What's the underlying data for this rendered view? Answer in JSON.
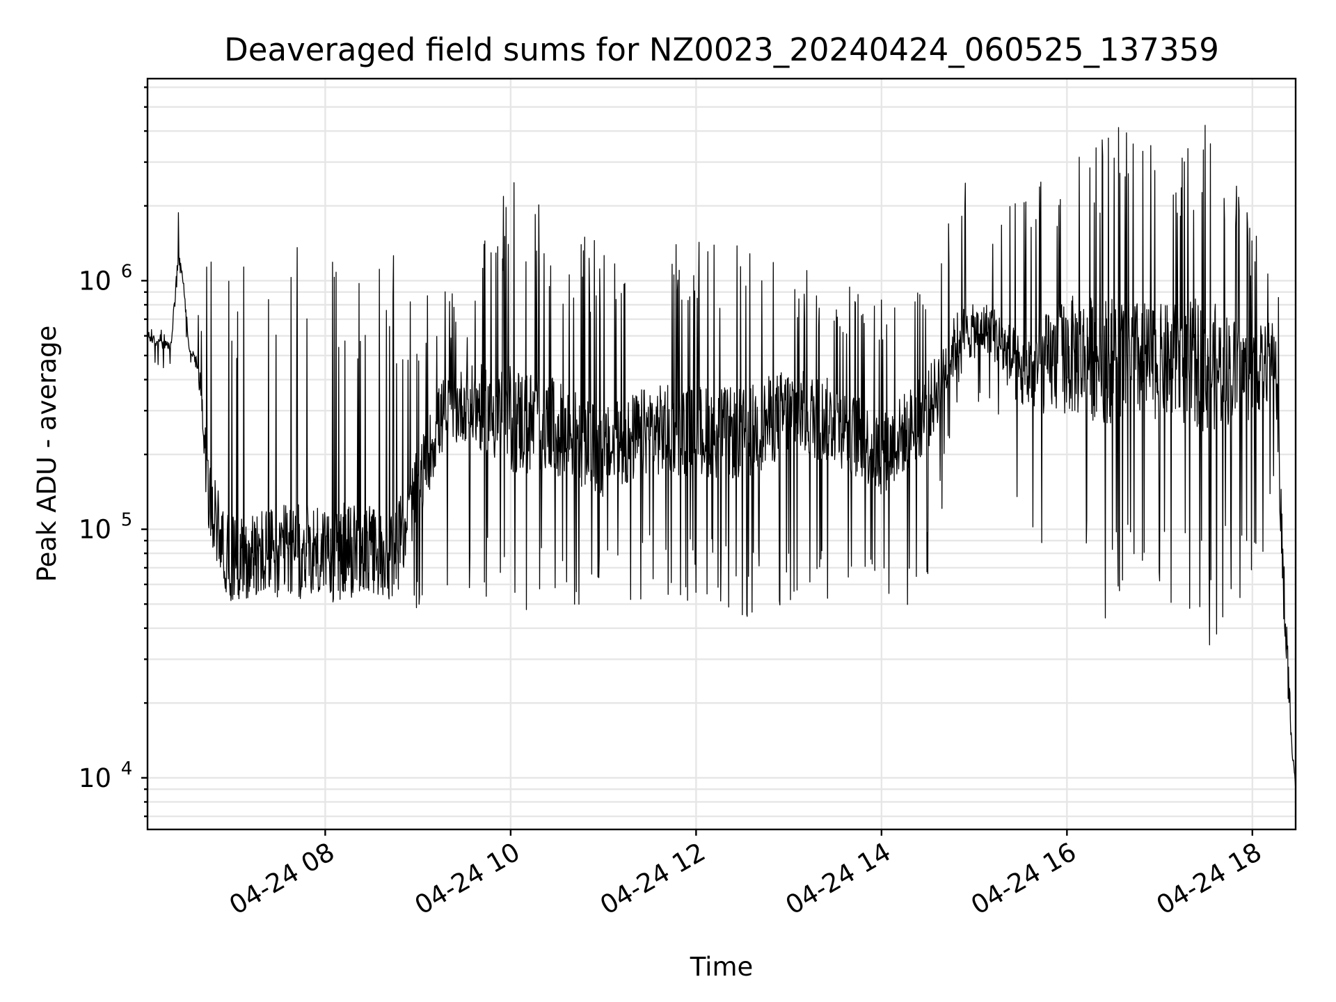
{
  "chart_data": {
    "type": "line",
    "title": "Deaveraged field sums for NZ0023_20240424_060525_137359",
    "xlabel": "Time",
    "ylabel": "Peak ADU - average",
    "x_ticks": [
      {
        "value": "2024-04-24T08:00",
        "label": "04-24 08"
      },
      {
        "value": "2024-04-24T10:00",
        "label": "04-24 10"
      },
      {
        "value": "2024-04-24T12:00",
        "label": "04-24 12"
      },
      {
        "value": "2024-04-24T14:00",
        "label": "04-24 14"
      },
      {
        "value": "2024-04-24T16:00",
        "label": "04-24 16"
      },
      {
        "value": "2024-04-24T18:00",
        "label": "04-24 18"
      }
    ],
    "y_ticks": [
      {
        "value": 10000,
        "base": "10",
        "exp": "4"
      },
      {
        "value": 100000,
        "base": "10",
        "exp": "5"
      },
      {
        "value": 1000000,
        "base": "10",
        "exp": "6"
      }
    ],
    "xlim": [
      "2024-04-24T06:05",
      "2024-04-24T18:28"
    ],
    "ylim": [
      6200,
      6500000
    ],
    "yscale": "log",
    "grid": true,
    "line_color": "#000000",
    "series": [
      {
        "x": [
          "2024-04-24T06:05",
          "2024-04-24T06:12",
          "2024-04-24T06:20",
          "2024-04-24T06:25",
          "2024-04-24T06:28",
          "2024-04-24T06:32",
          "2024-04-24T06:35",
          "2024-04-24T06:38",
          "2024-04-24T06:45",
          "2024-04-24T06:55",
          "2024-04-24T07:00",
          "2024-04-24T07:10",
          "2024-04-24T07:30",
          "2024-04-24T08:00",
          "2024-04-24T08:30",
          "2024-04-24T08:45",
          "2024-04-24T09:00",
          "2024-04-24T09:15",
          "2024-04-24T09:30",
          "2024-04-24T09:45",
          "2024-04-24T10:00",
          "2024-04-24T10:20",
          "2024-04-24T10:40",
          "2024-04-24T11:00",
          "2024-04-24T11:30",
          "2024-04-24T12:00",
          "2024-04-24T12:30",
          "2024-04-24T13:00",
          "2024-04-24T13:30",
          "2024-04-24T14:00",
          "2024-04-24T14:30",
          "2024-04-24T14:50",
          "2024-04-24T15:10",
          "2024-04-24T15:30",
          "2024-04-24T16:00",
          "2024-04-24T16:30",
          "2024-04-24T17:00",
          "2024-04-24T17:30",
          "2024-04-24T18:00",
          "2024-04-24T18:15",
          "2024-04-24T18:20",
          "2024-04-24T18:25",
          "2024-04-24T18:28"
        ],
        "values": [
          600000,
          560000,
          540000,
          1200000,
          1000000,
          520000,
          500000,
          450000,
          130000,
          85000,
          75000,
          80000,
          82000,
          85000,
          82000,
          78000,
          150000,
          280000,
          320000,
          300000,
          280000,
          260000,
          240000,
          200000,
          250000,
          250000,
          240000,
          300000,
          270000,
          200000,
          300000,
          600000,
          650000,
          420000,
          500000,
          480000,
          470000,
          460000,
          420000,
          500000,
          60000,
          16000,
          9000
        ],
        "high": [
          680000,
          640000,
          620000,
          2000000,
          1050000,
          560000,
          520000,
          800000,
          1300000,
          1500000,
          1500000,
          1500000,
          1500000,
          1500000,
          1500000,
          1500000,
          760000,
          1100000,
          700000,
          1600000,
          2600000,
          2600000,
          1500000,
          1500000,
          1500000,
          1500000,
          1400000,
          1200000,
          1000000,
          950000,
          1000000,
          2900000,
          2000000,
          2100000,
          3900000,
          4800000,
          3300000,
          4400000,
          1800000,
          1600000,
          1000000,
          45000,
          12000
        ],
        "low": [
          480000,
          450000,
          440000,
          850000,
          600000,
          480000,
          440000,
          260000,
          90000,
          62000,
          58000,
          55000,
          52000,
          50000,
          55000,
          52000,
          48000,
          60000,
          46000,
          48000,
          42000,
          48000,
          48000,
          50000,
          50000,
          50000,
          44000,
          45000,
          43000,
          45000,
          48000,
          350000,
          300000,
          110000,
          45000,
          40000,
          45000,
          30000,
          60000,
          100000,
          48000,
          14000,
          8500
        ]
      }
    ]
  }
}
